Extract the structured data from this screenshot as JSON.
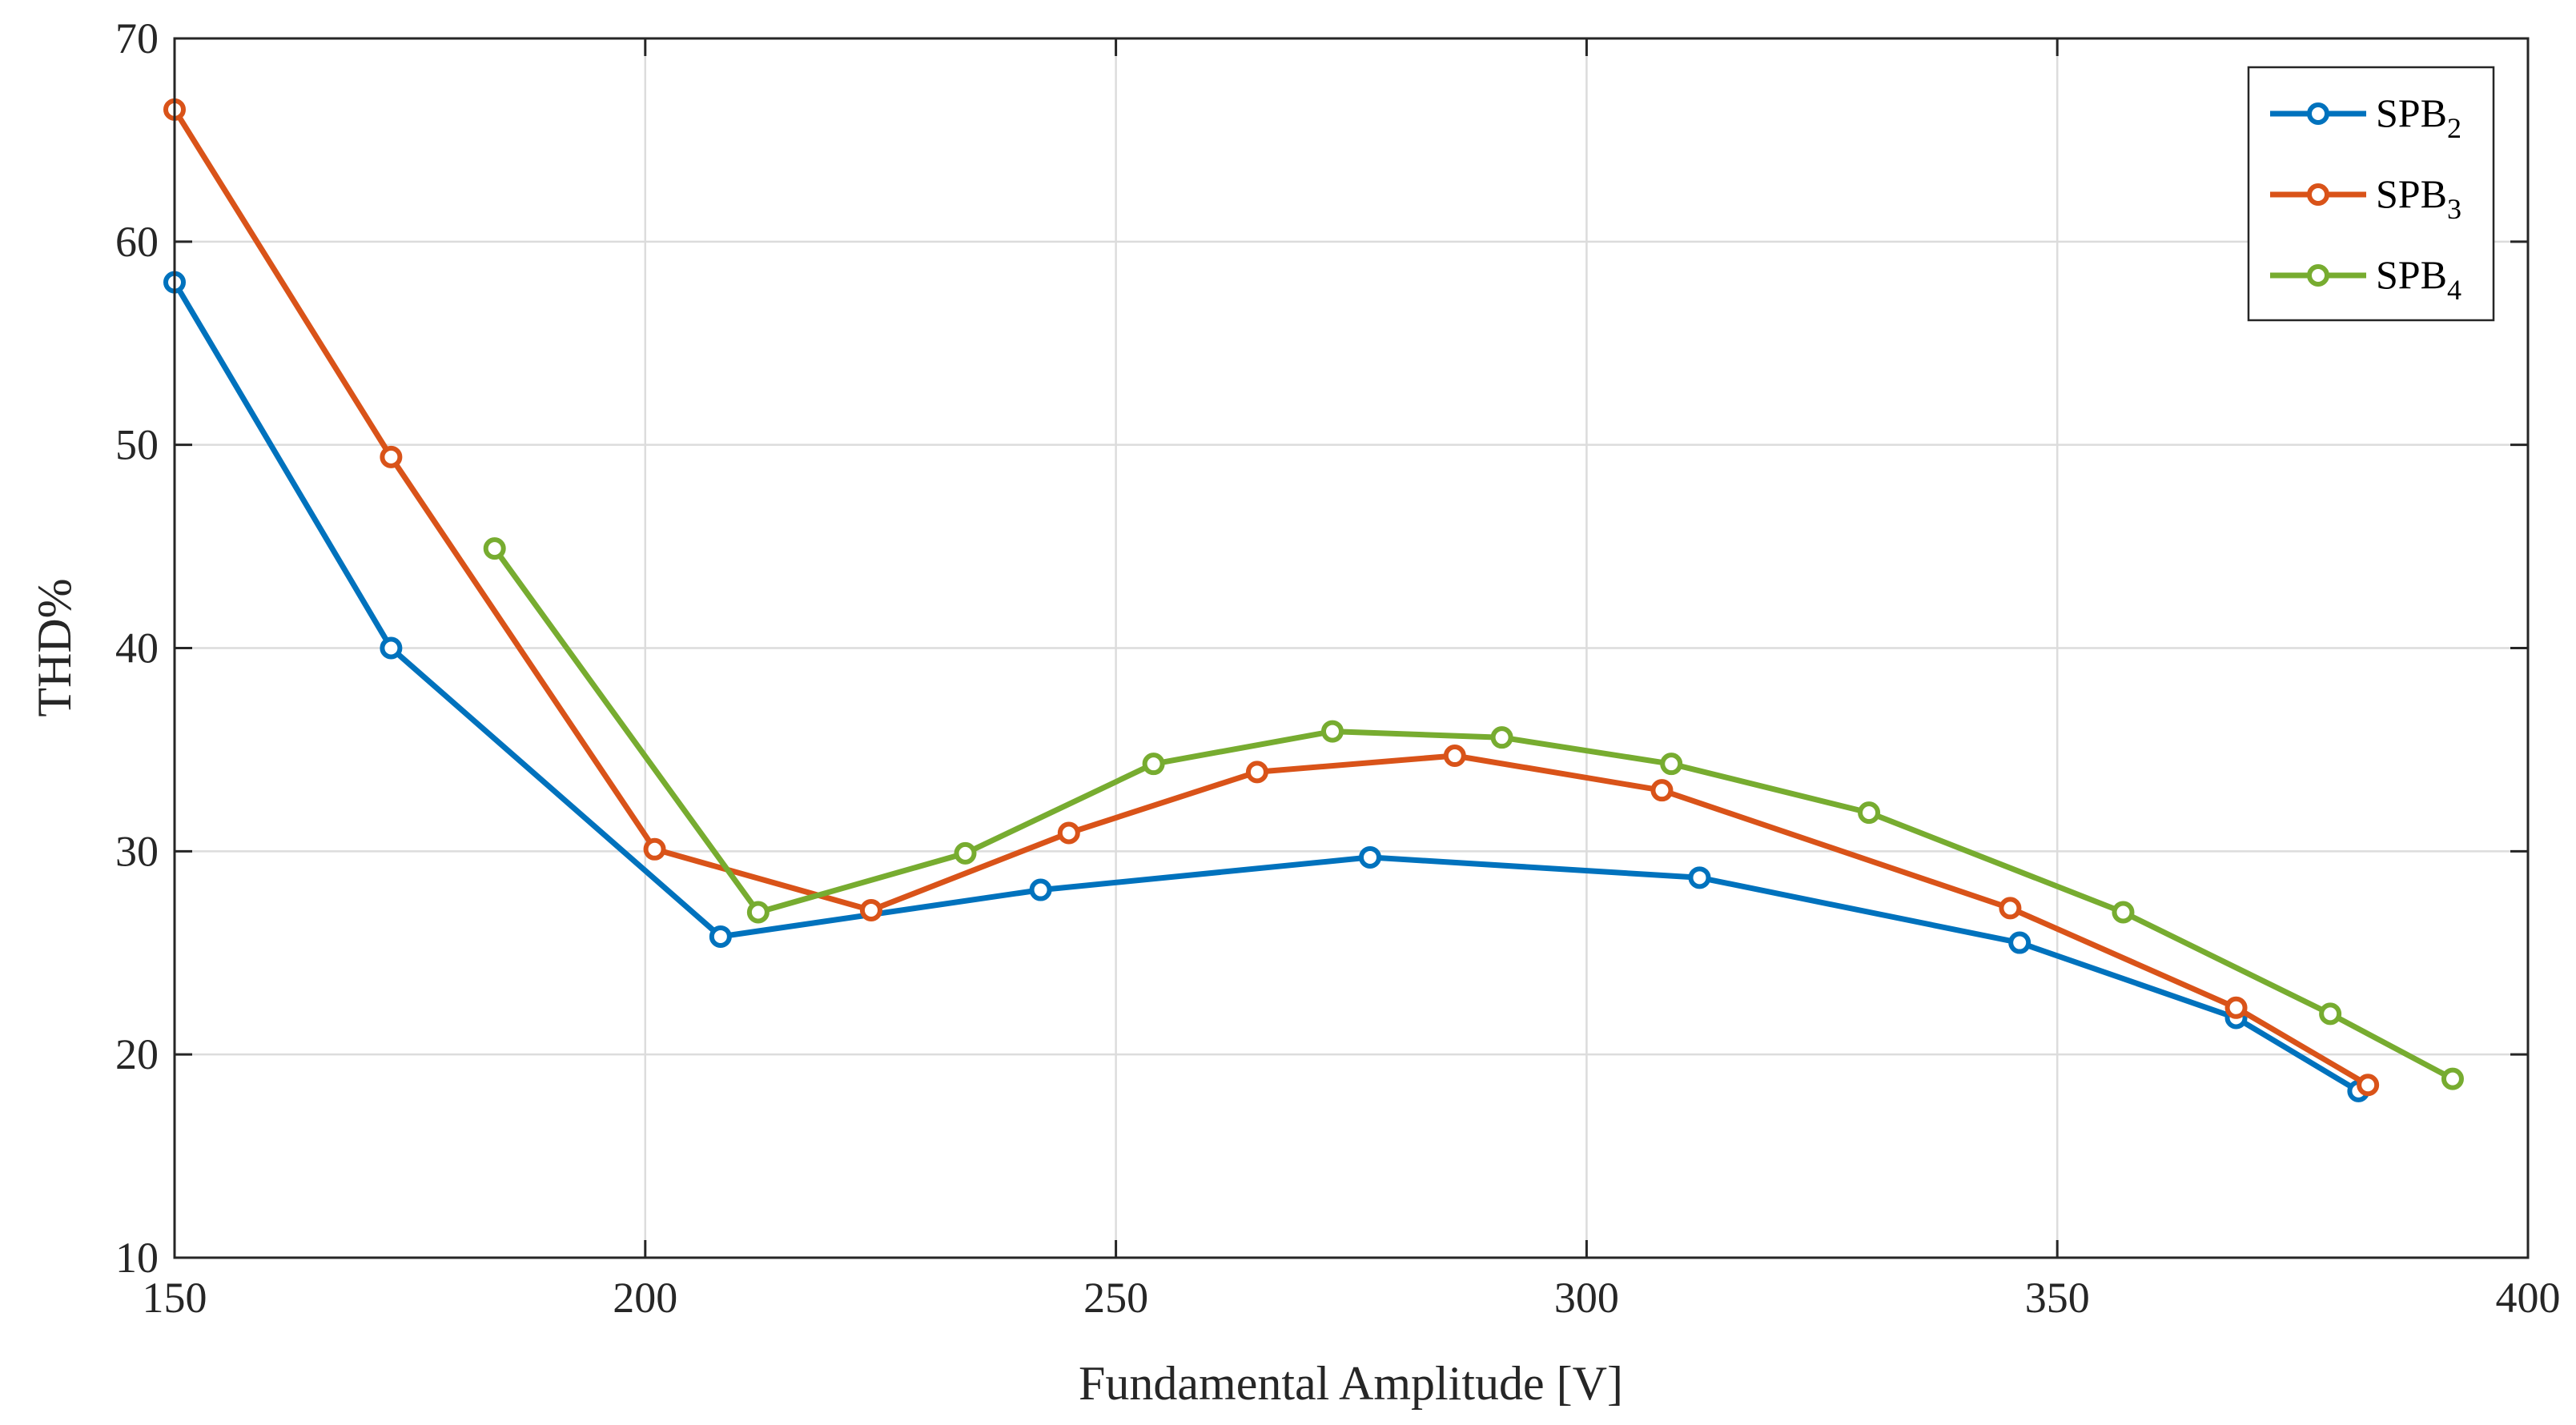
{
  "chart_data": {
    "type": "line",
    "title": "",
    "xlabel": "Fundamental Amplitude [V]",
    "ylabel": "THD%",
    "xlim": [
      150,
      400
    ],
    "ylim": [
      10,
      70
    ],
    "xticks": [
      150,
      200,
      250,
      300,
      350,
      400
    ],
    "yticks": [
      10,
      20,
      30,
      40,
      50,
      60,
      70
    ],
    "grid": true,
    "legend_position": "top-right",
    "series": [
      {
        "name": "SPB2",
        "label_main": "SPB",
        "label_sub": "2",
        "color": "#0072BD",
        "x": [
          150,
          173,
          208,
          242,
          277,
          312,
          346,
          369,
          382
        ],
        "y": [
          58,
          40,
          25.8,
          28.1,
          29.7,
          28.7,
          25.5,
          21.8,
          18.2
        ]
      },
      {
        "name": "SPB3",
        "label_main": "SPB",
        "label_sub": "3",
        "color": "#D95319",
        "x": [
          150,
          173,
          201,
          224,
          245,
          265,
          286,
          308,
          345,
          369,
          383
        ],
        "y": [
          66.5,
          49.4,
          30.1,
          27.1,
          30.9,
          33.9,
          34.7,
          33.0,
          27.2,
          22.3,
          18.5
        ]
      },
      {
        "name": "SPB4",
        "label_main": "SPB",
        "label_sub": "4",
        "color": "#77AC30",
        "x": [
          184,
          212,
          234,
          254,
          273,
          291,
          309,
          330,
          357,
          379,
          392
        ],
        "y": [
          44.9,
          27.0,
          29.9,
          34.3,
          35.9,
          35.6,
          34.3,
          31.9,
          27.0,
          22.0,
          18.8
        ]
      }
    ]
  }
}
